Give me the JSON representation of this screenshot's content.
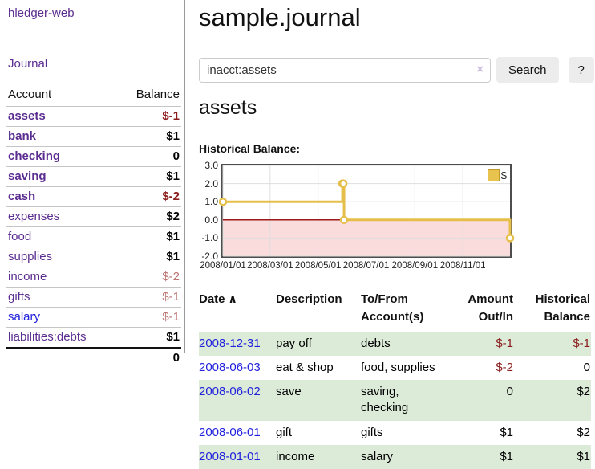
{
  "app": {
    "title": "hledger-web",
    "nav": {
      "journal": "Journal"
    }
  },
  "sidebar": {
    "account_header": "Account",
    "balance_header": "Balance",
    "accounts": [
      {
        "name": "assets",
        "balance": "$-1"
      },
      {
        "name": "bank",
        "balance": "$1"
      },
      {
        "name": "checking",
        "balance": "0"
      },
      {
        "name": "saving",
        "balance": "$1"
      },
      {
        "name": "cash",
        "balance": "$-2"
      },
      {
        "name": "expenses",
        "balance": "$2"
      },
      {
        "name": "food",
        "balance": "$1"
      },
      {
        "name": "supplies",
        "balance": "$1"
      },
      {
        "name": "income",
        "balance": "$-2"
      },
      {
        "name": "gifts",
        "balance": "$-1"
      },
      {
        "name": "salary",
        "balance": "$-1"
      },
      {
        "name": "liabilities:debts",
        "balance": "$1"
      }
    ],
    "total": "0"
  },
  "header": {
    "title": "sample.journal"
  },
  "search": {
    "value": "inacct:assets",
    "clear_icon": "×",
    "button_label": "Search",
    "help_label": "?"
  },
  "main": {
    "account_title": "assets",
    "chart_label": "Historical Balance:"
  },
  "chart_data": {
    "type": "line",
    "step": true,
    "series": [
      {
        "name": "$",
        "color": "#e5bf49",
        "points": [
          [
            "2008-01-01",
            1
          ],
          [
            "2008-06-01",
            2
          ],
          [
            "2008-06-02",
            2
          ],
          [
            "2008-06-03",
            0
          ],
          [
            "2008-12-31",
            -1
          ]
        ]
      }
    ],
    "xlim": [
      "2008-01-01",
      "2008-12-31"
    ],
    "ylim": [
      -2,
      3
    ],
    "yticks": [
      {
        "value": 3,
        "label": "3.0"
      },
      {
        "value": 2,
        "label": "2.0"
      },
      {
        "value": 1,
        "label": "1.0"
      },
      {
        "value": 0,
        "label": "0.0"
      },
      {
        "value": -1,
        "label": "-1.0"
      },
      {
        "value": -2,
        "label": "-2.0"
      }
    ],
    "xticks": [
      {
        "date": "2008-01-01",
        "label": "2008/01/01"
      },
      {
        "date": "2008-03-01",
        "label": "2008/03/01"
      },
      {
        "date": "2008-05-01",
        "label": "2008/05/01"
      },
      {
        "date": "2008-07-01",
        "label": "2008/07/01"
      },
      {
        "date": "2008-09-01",
        "label": "2008/09/01"
      },
      {
        "date": "2008-11-01",
        "label": "2008/11/01"
      }
    ],
    "legend": {
      "label": "$",
      "swatch": "#e8c44f",
      "position": "top-right"
    },
    "grid": true,
    "colors": {
      "negative_region": "#fbdcdc",
      "zero_line": "#9e1a1a",
      "grid": "#dedede",
      "border": "#4d4d4d"
    }
  },
  "register": {
    "header": {
      "date": "Date",
      "sort_indicator": "∧",
      "description": "Description",
      "accounts": "To/From\nAccount(s)",
      "amount": "Amount\nOut/In",
      "balance": "Historical\nBalance"
    },
    "rows": [
      {
        "date": "2008-12-31",
        "description": "pay off",
        "accounts": "debts",
        "amount": "$-1",
        "balance": "$-1"
      },
      {
        "date": "2008-06-03",
        "description": "eat & shop",
        "accounts": "food, supplies",
        "amount": "$-2",
        "balance": "0"
      },
      {
        "date": "2008-06-02",
        "description": "save",
        "accounts": "saving,\nchecking",
        "amount": "0",
        "balance": "$2"
      },
      {
        "date": "2008-06-01",
        "description": "gift",
        "accounts": "gifts",
        "amount": "$1",
        "balance": "$2"
      },
      {
        "date": "2008-01-01",
        "description": "income",
        "accounts": "salary",
        "amount": "$1",
        "balance": "$1"
      }
    ]
  }
}
